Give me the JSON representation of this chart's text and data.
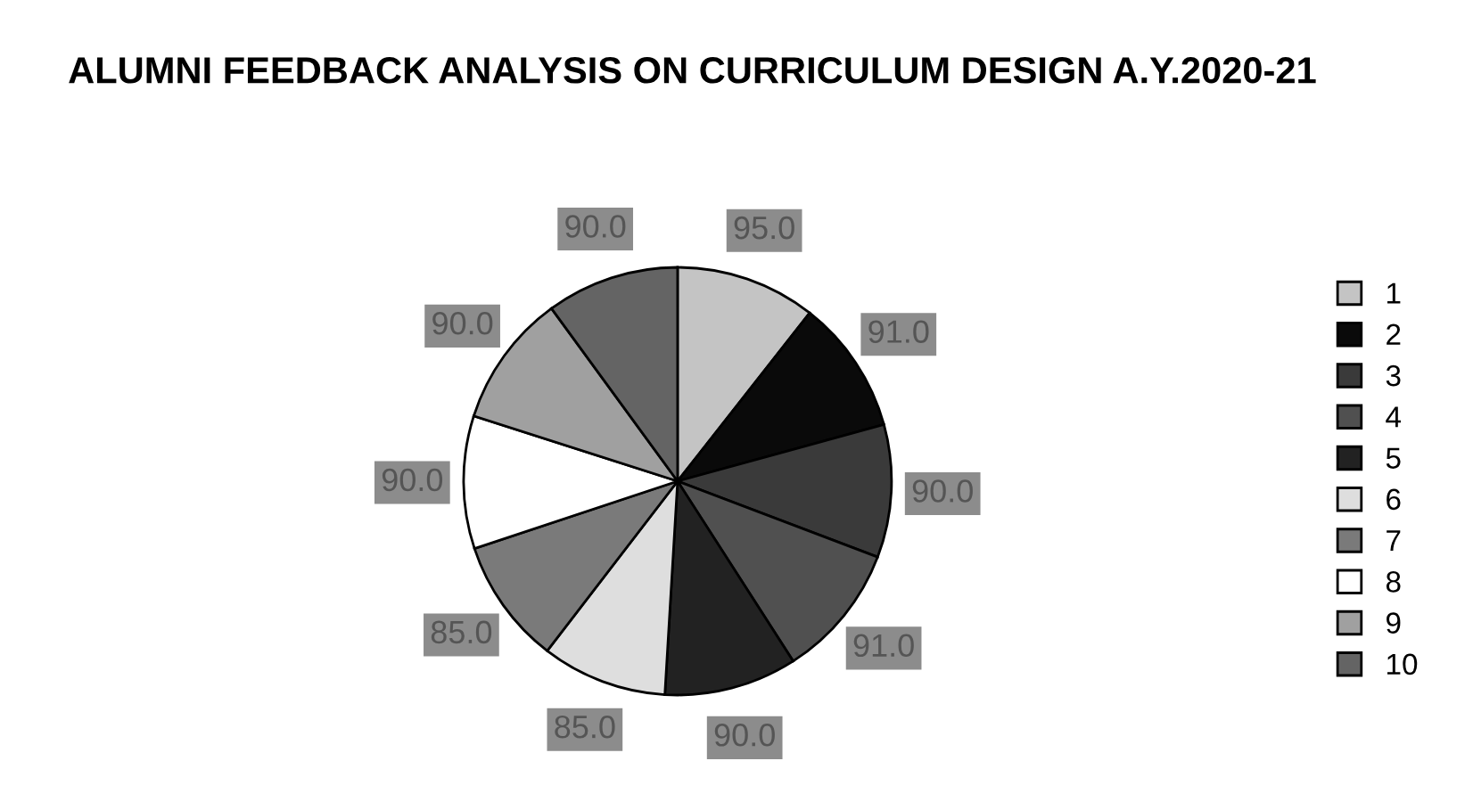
{
  "chart_data": {
    "type": "pie",
    "title": "ALUMNI FEEDBACK ANALYSIS ON CURRICULUM DESIGN A.Y.2020-21",
    "categories": [
      "1",
      "2",
      "3",
      "4",
      "5",
      "6",
      "7",
      "8",
      "9",
      "10"
    ],
    "values": [
      95,
      91,
      90,
      91,
      90,
      85,
      85,
      90,
      90,
      90
    ],
    "value_labels": [
      "95.0",
      "91.0",
      "90.0",
      "91.0",
      "90.0",
      "85.0",
      "85.0",
      "90.0",
      "90.0",
      "90.0"
    ],
    "colors": [
      "#c4c4c4",
      "#0a0a0a",
      "#3a3a3a",
      "#505050",
      "#222222",
      "#dedede",
      "#7a7a7a",
      "#ffffff",
      "#a0a0a0",
      "#646464"
    ],
    "legend": "right"
  }
}
